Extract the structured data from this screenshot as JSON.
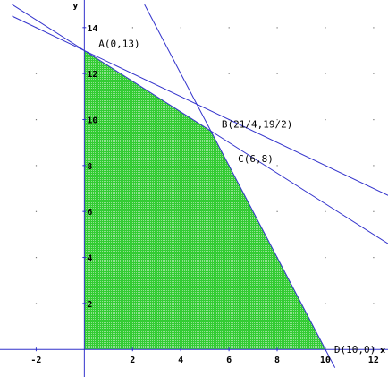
{
  "chart_data": {
    "type": "area",
    "title": "",
    "xlabel": "x",
    "ylabel": "y",
    "xlim": [
      -3.5,
      12.6
    ],
    "ylim": [
      -1.2,
      15.2
    ],
    "grid": "dots",
    "x_ticks": [
      -2,
      2,
      4,
      6,
      8,
      10,
      12
    ],
    "y_ticks": [
      2,
      4,
      6,
      8,
      10,
      12,
      14
    ],
    "feasible_region": {
      "vertices": [
        [
          0,
          0
        ],
        [
          0,
          13
        ],
        [
          5.25,
          9.5
        ],
        [
          6,
          8
        ],
        [
          10,
          0
        ]
      ],
      "fill_color": "#33cc33"
    },
    "constraint_lines": [
      {
        "equation": "x + 2y = 26",
        "points": [
          [
            -3,
            14.5
          ],
          [
            13,
            6.5
          ]
        ],
        "color": "#3333cc"
      },
      {
        "equation": "2x + 3y = 39",
        "points": [
          [
            -3,
            15
          ],
          [
            12.6,
            4.6
          ]
        ],
        "color": "#3333cc"
      },
      {
        "equation": "2x + y = 20",
        "points": [
          [
            2.5,
            15
          ],
          [
            10.4,
            -0.8
          ]
        ],
        "color": "#3333cc"
      }
    ],
    "points": [
      {
        "label": "A(0,13)",
        "x": 0,
        "y": 13
      },
      {
        "label": "B(21/4,19/2)",
        "x": 5.25,
        "y": 9.5
      },
      {
        "label": "C(6,8)",
        "x": 6,
        "y": 8
      },
      {
        "label": "D(10,0)",
        "x": 10,
        "y": 0
      }
    ]
  }
}
